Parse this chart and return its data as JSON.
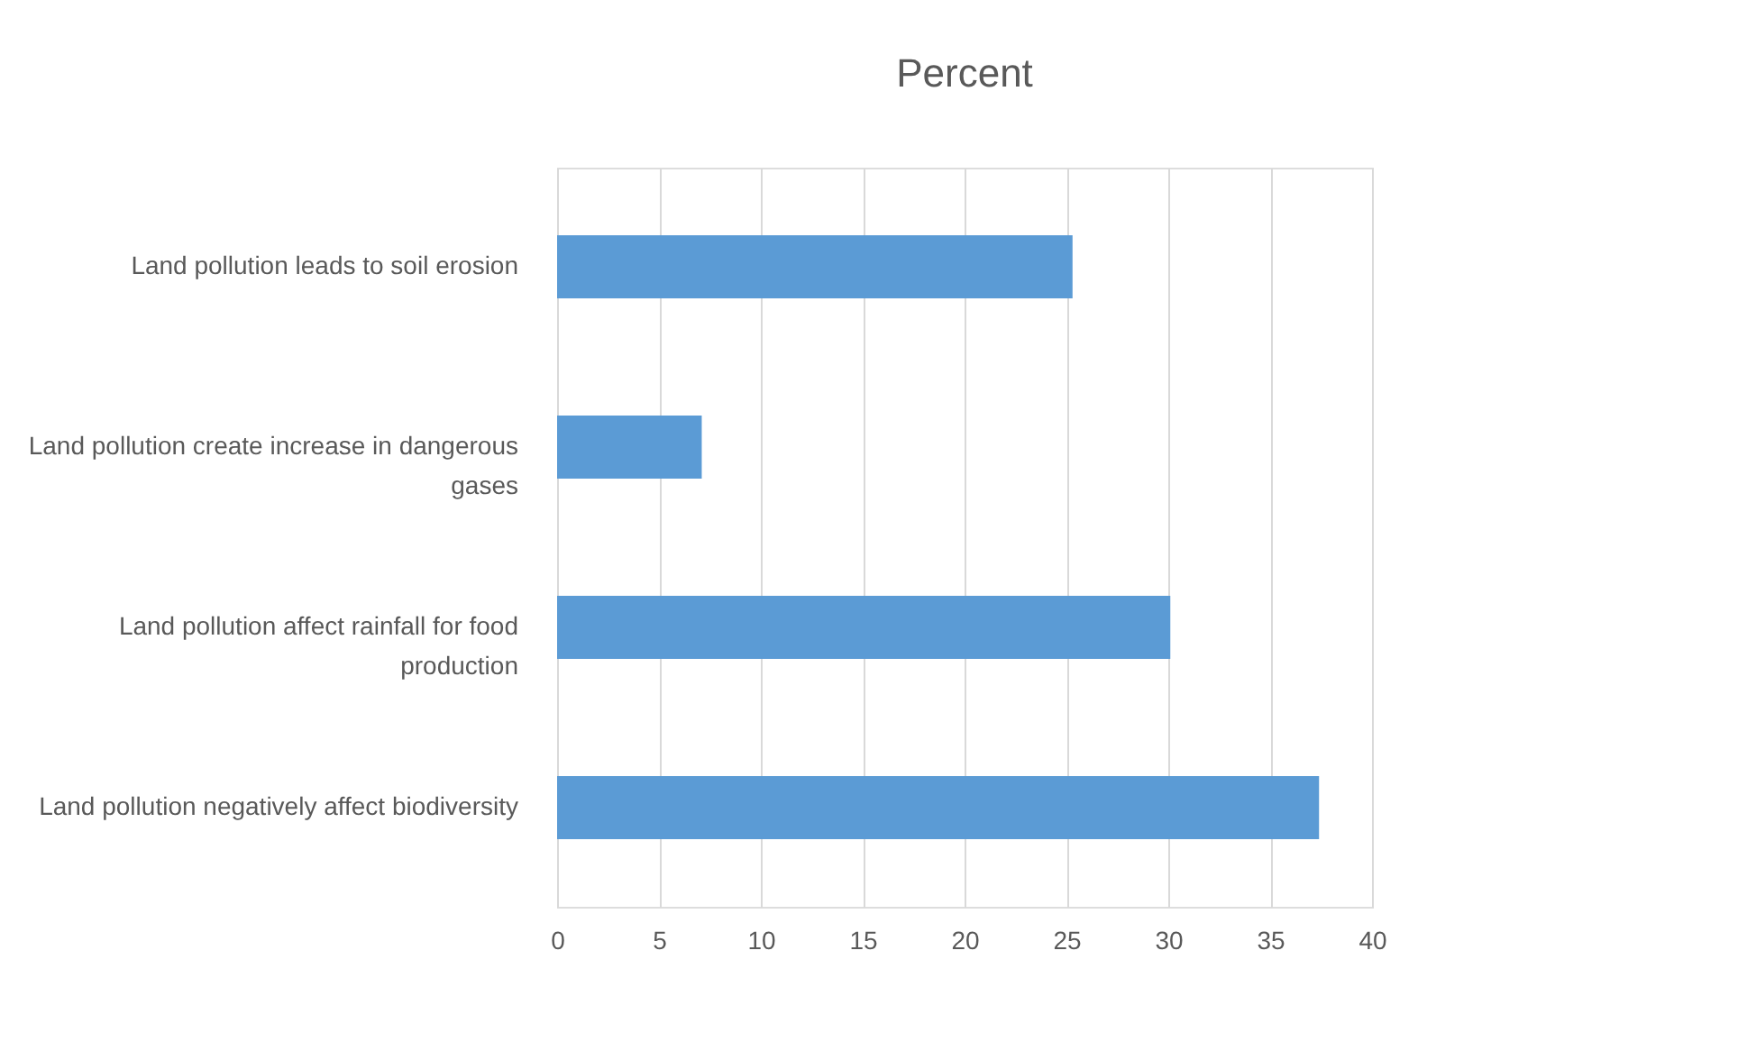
{
  "chart_data": {
    "type": "bar",
    "title": "Percent",
    "orientation": "horizontal",
    "categories": [
      "Land pollution leads to soil erosion",
      "Land pollution create increase in dangerous gases",
      "Land pollution affect rainfall for food production",
      "Land pollution negatively affect biodiversity"
    ],
    "values": [
      25.3,
      7.1,
      30.1,
      37.4
    ],
    "color": "#5b9bd5",
    "xlim": [
      0,
      40
    ],
    "xticks": [
      0,
      5,
      10,
      15,
      20,
      25,
      30,
      35,
      40
    ],
    "grid": "x"
  }
}
